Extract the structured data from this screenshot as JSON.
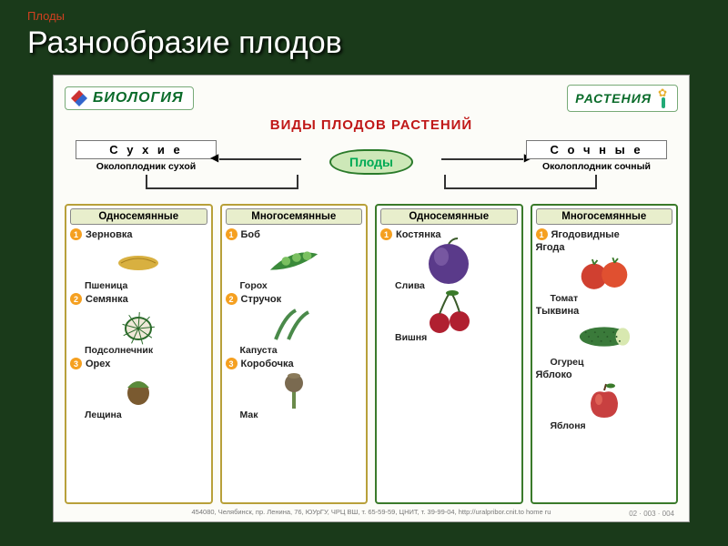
{
  "breadcrumb": "Плоды",
  "slide_title": "Разнообразие плодов",
  "brand": {
    "label": "БИОЛОГИЯ"
  },
  "category": {
    "label": "РАСТЕНИЯ"
  },
  "chart_title": "ВИДЫ ПЛОДОВ РАСТЕНИЙ",
  "root_node": "Плоды",
  "groups": {
    "dry": {
      "title": "С у х и е",
      "subtitle": "Околоплодник сухой"
    },
    "juicy": {
      "title": "С о ч н ы е",
      "subtitle": "Околоплодник сочный"
    }
  },
  "columns": [
    {
      "head": "Односемянные",
      "border_color": "#b8a03a",
      "items": [
        {
          "n": "1",
          "label": "Зерновка",
          "sub": "Пшеница",
          "icon": "wheat"
        },
        {
          "n": "2",
          "label": "Семянка",
          "sub": "Подсолнечник",
          "icon": "sunflower"
        },
        {
          "n": "3",
          "label": "Орех",
          "sub": "Лещина",
          "icon": "nut"
        }
      ]
    },
    {
      "head": "Многосемянные",
      "border_color": "#b8a03a",
      "items": [
        {
          "n": "1",
          "label": "Боб",
          "sub": "Горох",
          "icon": "pea"
        },
        {
          "n": "2",
          "label": "Стручок",
          "sub": "Капуста",
          "icon": "pod"
        },
        {
          "n": "3",
          "label": "Коробочка",
          "sub": "Мак",
          "icon": "poppy"
        }
      ]
    },
    {
      "head": "Односемянные",
      "border_color": "#3a7a2a",
      "items": [
        {
          "n": "1",
          "label": "Костянка",
          "sub": "Слива",
          "icon": "plum"
        },
        {
          "n": "",
          "label": "",
          "sub": "Вишня",
          "icon": "cherry"
        }
      ]
    },
    {
      "head": "Многосемянные",
      "border_color": "#3a7a2a",
      "items": [
        {
          "n": "1",
          "label": "Ягодовидные",
          "sub": "",
          "icon": ""
        },
        {
          "n": "",
          "label": "Ягода",
          "sub": "Томат",
          "icon": "tomato"
        },
        {
          "n": "",
          "label": "Тыквина",
          "sub": "Огурец",
          "icon": "cucumber"
        },
        {
          "n": "",
          "label": "Яблоко",
          "sub": "Яблоня",
          "icon": "apple"
        }
      ]
    }
  ],
  "footer": "454080, Челябинск, пр. Ленина, 76, ЮУрГУ, ЧРЦ ВШ,   т. 65-59-59, ЦНИТ,   т. 39-99-04, http://uralpribor.cnit.to home ru",
  "code": "02 · 003 · 004",
  "colors": {
    "slide_bg": "#1a3a1a",
    "title_fg": "#ffffff",
    "crumb_fg": "#d04020",
    "chart_title_fg": "#c01818",
    "node_bg": "#cde8b8",
    "node_border": "#2a7a2a",
    "colhead_bg": "#e8eecc"
  },
  "icon_colors": {
    "wheat": "#d8b040",
    "sunflower": "#2b6b2b",
    "nut": "#7a5a30",
    "pea": "#3a8a3a",
    "pod": "#4a8a4a",
    "poppy": "#7a6a50",
    "plum": "#5a3a8a",
    "cherry": "#b02030",
    "tomato": "#d04030",
    "cucumber": "#3a7a3a",
    "apple": "#c84040"
  }
}
